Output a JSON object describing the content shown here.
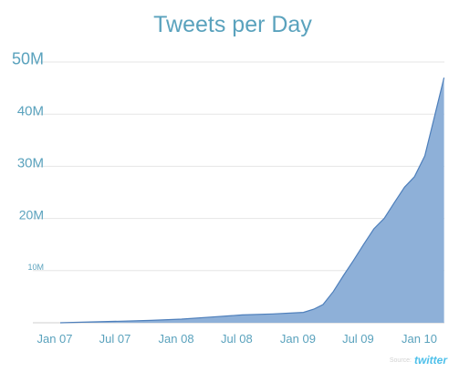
{
  "colors": {
    "title": "#5aa2bd",
    "axis_text": "#5aa2bd",
    "area_fill": "#8eb0d8",
    "area_stroke": "#4e7fbb",
    "grid": "#e6e6e6",
    "baseline": "#cfcfcf",
    "credit_source": "#d2d2d2",
    "credit_brand": "#4ec0ea"
  },
  "credit": {
    "source_label": "Source:",
    "brand_label": "twitter"
  },
  "chart_data": {
    "type": "area",
    "title": "Tweets per Day",
    "xlabel": "",
    "ylabel": "",
    "ylim": [
      0,
      50000000
    ],
    "xlim": [
      "2007-01-01",
      "2010-03-01"
    ],
    "grid": true,
    "legend": "none",
    "yticks": [
      {
        "value": 10000000,
        "label": "10M"
      },
      {
        "value": 20000000,
        "label": "20M"
      },
      {
        "value": 30000000,
        "label": "30M"
      },
      {
        "value": 40000000,
        "label": "40M"
      },
      {
        "value": 50000000,
        "label": "50M"
      }
    ],
    "xticks": [
      {
        "date": "2007-01-01",
        "label": "Jan 07"
      },
      {
        "date": "2007-07-01",
        "label": "Jul 07"
      },
      {
        "date": "2008-01-01",
        "label": "Jan 08"
      },
      {
        "date": "2008-07-01",
        "label": "Jul 08"
      },
      {
        "date": "2009-01-01",
        "label": "Jan 09"
      },
      {
        "date": "2009-07-01",
        "label": "Jul 09"
      },
      {
        "date": "2010-01-01",
        "label": "Jan 10"
      }
    ],
    "series": [
      {
        "x": [
          "2007-01-01",
          "2007-04-01",
          "2007-07-01",
          "2007-10-01",
          "2008-01-01",
          "2008-04-01",
          "2008-07-01",
          "2008-10-01",
          "2009-01-01",
          "2009-02-01",
          "2009-03-01",
          "2009-04-01",
          "2009-05-01",
          "2009-06-01",
          "2009-07-01",
          "2009-08-01",
          "2009-09-01",
          "2009-10-01",
          "2009-11-01",
          "2009-12-01",
          "2010-01-01",
          "2010-02-01",
          "2010-02-28"
        ],
        "y": [
          5000,
          150000,
          300000,
          450000,
          700000,
          1100000,
          1500000,
          1700000,
          2000000,
          2600000,
          3500000,
          6000000,
          9000000,
          12000000,
          15000000,
          18000000,
          20000000,
          23000000,
          26000000,
          28000000,
          32000000,
          40000000,
          47000000
        ]
      }
    ]
  }
}
